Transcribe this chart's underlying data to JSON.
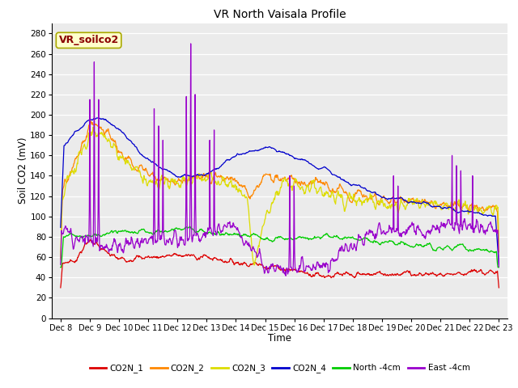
{
  "title": "VR North Vaisala Profile",
  "xlabel": "Time",
  "ylabel": "Soil CO2 (mV)",
  "annotation": "VR_soilco2",
  "ylim": [
    0,
    290
  ],
  "yticks": [
    0,
    20,
    40,
    60,
    80,
    100,
    120,
    140,
    160,
    180,
    200,
    220,
    240,
    260,
    280
  ],
  "xtick_labels": [
    "Dec 8",
    "Dec 9",
    "Dec 10",
    "Dec 11",
    "Dec 12",
    "Dec 13",
    "Dec 14",
    "Dec 15",
    "Dec 16",
    "Dec 17",
    "Dec 18",
    "Dec 19",
    "Dec 20",
    "Dec 21",
    "Dec 22",
    "Dec 23"
  ],
  "series_colors": {
    "CO2N_1": "#dd0000",
    "CO2N_2": "#ff8800",
    "CO2N_3": "#dddd00",
    "CO2N_4": "#0000cc",
    "North_4cm": "#00cc00",
    "East_4cm": "#9900cc"
  },
  "legend_labels": [
    "CO2N_1",
    "CO2N_2",
    "CO2N_3",
    "CO2N_4",
    "North -4cm",
    "East -4cm"
  ]
}
